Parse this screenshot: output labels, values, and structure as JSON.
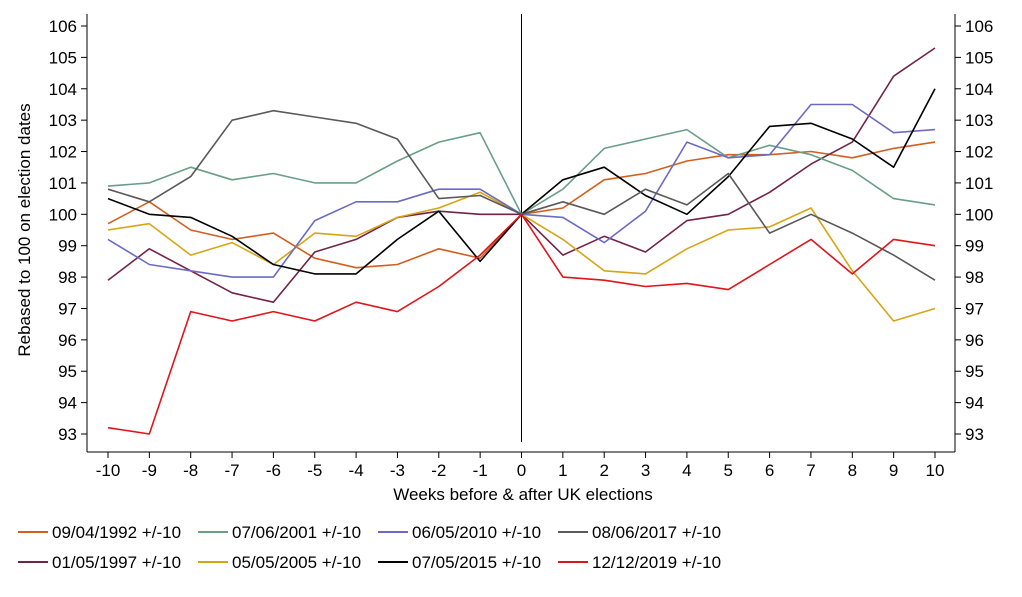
{
  "chart_data": {
    "type": "line",
    "xlabel": "Weeks before & after UK elections",
    "ylabel": "Rebased to 100 on election dates",
    "xlim": [
      -10,
      10
    ],
    "ylim": [
      92.5,
      106.5
    ],
    "x": [
      -10,
      -9,
      -8,
      -7,
      -6,
      -5,
      -4,
      -3,
      -2,
      -1,
      0,
      1,
      2,
      3,
      4,
      5,
      6,
      7,
      8,
      9,
      10
    ],
    "x_tick_labels": [
      "-10",
      "-9",
      "-8",
      "-7",
      "-6",
      "-5",
      "-4",
      "-3",
      "-2",
      "-1",
      "0",
      "1",
      "2",
      "3",
      "4",
      "5",
      "6",
      "7",
      "8",
      "9",
      "10"
    ],
    "y_ticks": [
      93,
      94,
      95,
      96,
      97,
      98,
      99,
      100,
      101,
      102,
      103,
      104,
      105,
      106
    ],
    "y_tick_labels": [
      "93",
      "94",
      "95",
      "96",
      "97",
      "98",
      "99",
      "100",
      "101",
      "102",
      "103",
      "104",
      "105",
      "106"
    ],
    "y_axis_both_sides": true,
    "vertical_marker_at_x": 0,
    "grid": false,
    "legend_position": "bottom",
    "series": [
      {
        "name": "09/04/1992 +/-10",
        "color": "#d35f1f",
        "values": [
          99.7,
          100.4,
          99.5,
          99.2,
          99.4,
          98.6,
          98.3,
          98.4,
          98.9,
          98.6,
          100,
          100.2,
          101.1,
          101.3,
          101.7,
          101.9,
          101.9,
          102.0,
          101.8,
          102.1,
          102.3
        ]
      },
      {
        "name": "01/05/1997 +/-10",
        "color": "#742348",
        "values": [
          97.9,
          98.9,
          98.2,
          97.5,
          97.2,
          98.8,
          99.2,
          99.9,
          100.1,
          100.0,
          100,
          98.7,
          99.3,
          98.8,
          99.8,
          100.0,
          100.7,
          101.6,
          102.3,
          104.4,
          105.3
        ]
      },
      {
        "name": "07/06/2001 +/-10",
        "color": "#6a9e88",
        "values": [
          100.9,
          101.0,
          101.5,
          101.1,
          101.3,
          101.0,
          101.0,
          101.7,
          102.3,
          102.6,
          100,
          100.8,
          102.1,
          102.4,
          102.7,
          101.8,
          102.2,
          101.9,
          101.4,
          100.5,
          100.3
        ]
      },
      {
        "name": "05/05/2005 +/-10",
        "color": "#d7a514",
        "values": [
          99.5,
          99.7,
          98.7,
          99.1,
          98.4,
          99.4,
          99.3,
          99.9,
          100.2,
          100.7,
          100,
          99.2,
          98.2,
          98.1,
          98.9,
          99.5,
          99.6,
          100.2,
          98.2,
          96.6,
          97.0
        ]
      },
      {
        "name": "06/05/2010 +/-10",
        "color": "#6b6bc6",
        "values": [
          99.2,
          98.4,
          98.2,
          98.0,
          98.0,
          99.8,
          100.4,
          100.4,
          100.8,
          100.8,
          100,
          99.9,
          99.1,
          100.1,
          102.3,
          101.8,
          101.9,
          103.5,
          103.5,
          102.6,
          102.7
        ]
      },
      {
        "name": "07/05/2015 +/-10",
        "color": "#000000",
        "values": [
          100.5,
          100.0,
          99.9,
          99.3,
          98.4,
          98.1,
          98.1,
          99.2,
          100.1,
          98.5,
          100,
          101.1,
          101.5,
          100.6,
          100.0,
          101.2,
          102.8,
          102.9,
          102.4,
          101.5,
          104.0
        ]
      },
      {
        "name": "08/06/2017 +/-10",
        "color": "#5a5a5a",
        "values": [
          100.8,
          100.4,
          101.2,
          103.0,
          103.3,
          103.1,
          102.9,
          102.4,
          100.5,
          100.6,
          100,
          100.4,
          100.0,
          100.8,
          100.3,
          101.3,
          99.4,
          100.0,
          99.4,
          98.7,
          97.9
        ]
      },
      {
        "name": "12/12/2019 +/-10",
        "color": "#e0141b",
        "values": [
          93.2,
          93.0,
          96.9,
          96.6,
          96.9,
          96.6,
          97.2,
          96.9,
          97.7,
          98.7,
          100,
          98.0,
          97.9,
          97.7,
          97.8,
          97.6,
          98.4,
          99.2,
          98.1,
          99.2,
          99.0
        ]
      }
    ],
    "legend_rows": [
      [
        "09/04/1992 +/-10",
        "07/06/2001 +/-10",
        "06/05/2010 +/-10",
        "08/06/2017 +/-10"
      ],
      [
        "01/05/1997 +/-10",
        "05/05/2005 +/-10",
        "07/05/2015 +/-10",
        "12/12/2019 +/-10"
      ]
    ]
  }
}
